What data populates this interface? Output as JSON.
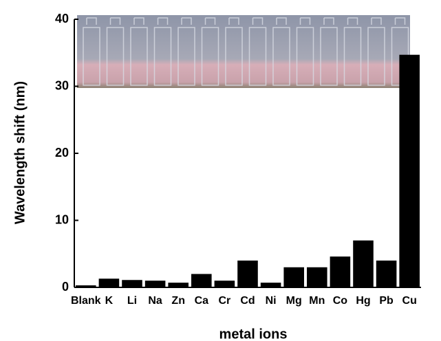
{
  "chart_data": {
    "type": "bar",
    "x_label": "metal ions",
    "y_label": "Wavelength shift  (nm)",
    "categories": [
      "Blank",
      "K",
      "Li",
      "Na",
      "Zn",
      "Ca",
      "Cr",
      "Cd",
      "Ni",
      "Mg",
      "Mn",
      "Co",
      "Hg",
      "Pb",
      "Cu"
    ],
    "values": [
      0.3,
      1.3,
      1.1,
      1.0,
      0.7,
      2.0,
      1.0,
      4.0,
      0.7,
      3.0,
      3.0,
      4.6,
      7.0,
      4.0,
      34.7
    ],
    "color": "#000000",
    "ylim": [
      0,
      40
    ],
    "yticks": [
      0,
      10,
      20,
      30,
      40
    ]
  }
}
